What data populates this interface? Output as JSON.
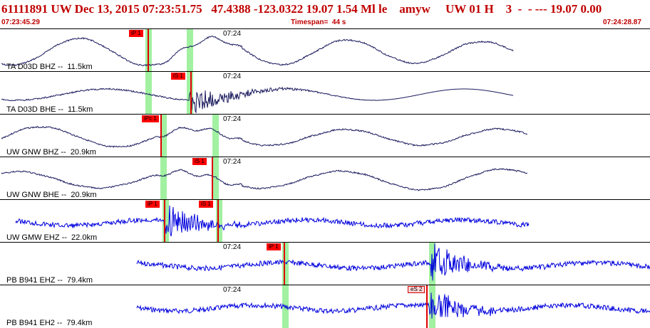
{
  "header": {
    "event_line": "61111891 UW Dec 13, 2015 07:23:51.75   47.4388 -123.0322 19.07 1.54 Ml le    amyw     UW 01 H    3  -  - --- 19.07 0.00",
    "start_time": "07:23:45.29",
    "timespan": "Timespan=  44 s",
    "end_time": "07:24:28.87"
  },
  "colors": {
    "header_text": "#c00000",
    "trace_dark": "#1a1a5e",
    "trace_blue": "#0000dd",
    "pick_band": "#90ee90",
    "pick_flag": "#ff0000"
  },
  "panels": [
    {
      "label": "TA D03D BHZ --  11.5km",
      "time": "07:24",
      "picks": [
        {
          "name": "iP 1"
        }
      ],
      "bands": 2
    },
    {
      "label": "TA D03D BHE --  11.5km",
      "time": "07:24",
      "picks": [
        {
          "name": "iS 1"
        }
      ],
      "bands": 2
    },
    {
      "label": "UW GNW BHZ --  20.9km",
      "time": "07:24",
      "picks": [
        {
          "name": "iPc 1"
        }
      ],
      "bands": 2
    },
    {
      "label": "UW GNW BHE --  20.9km",
      "time": "07:24",
      "picks": [
        {
          "name": "iS 1"
        }
      ],
      "bands": 2
    },
    {
      "label": "UW GMW EHZ --  22.0km",
      "time": "",
      "picks": [
        {
          "name": "iP 1"
        },
        {
          "name": "iS 1"
        }
      ],
      "bands": 2
    },
    {
      "label": "PB B941 EHZ --  79.4km",
      "time": "07:24",
      "picks": [
        {
          "name": "iP 1"
        }
      ],
      "bands": 2
    },
    {
      "label": "PB B941 EH2 --  79.4km",
      "time": "07:24",
      "picks": [
        {
          "name": "eS 2"
        }
      ],
      "bands": 2
    }
  ]
}
